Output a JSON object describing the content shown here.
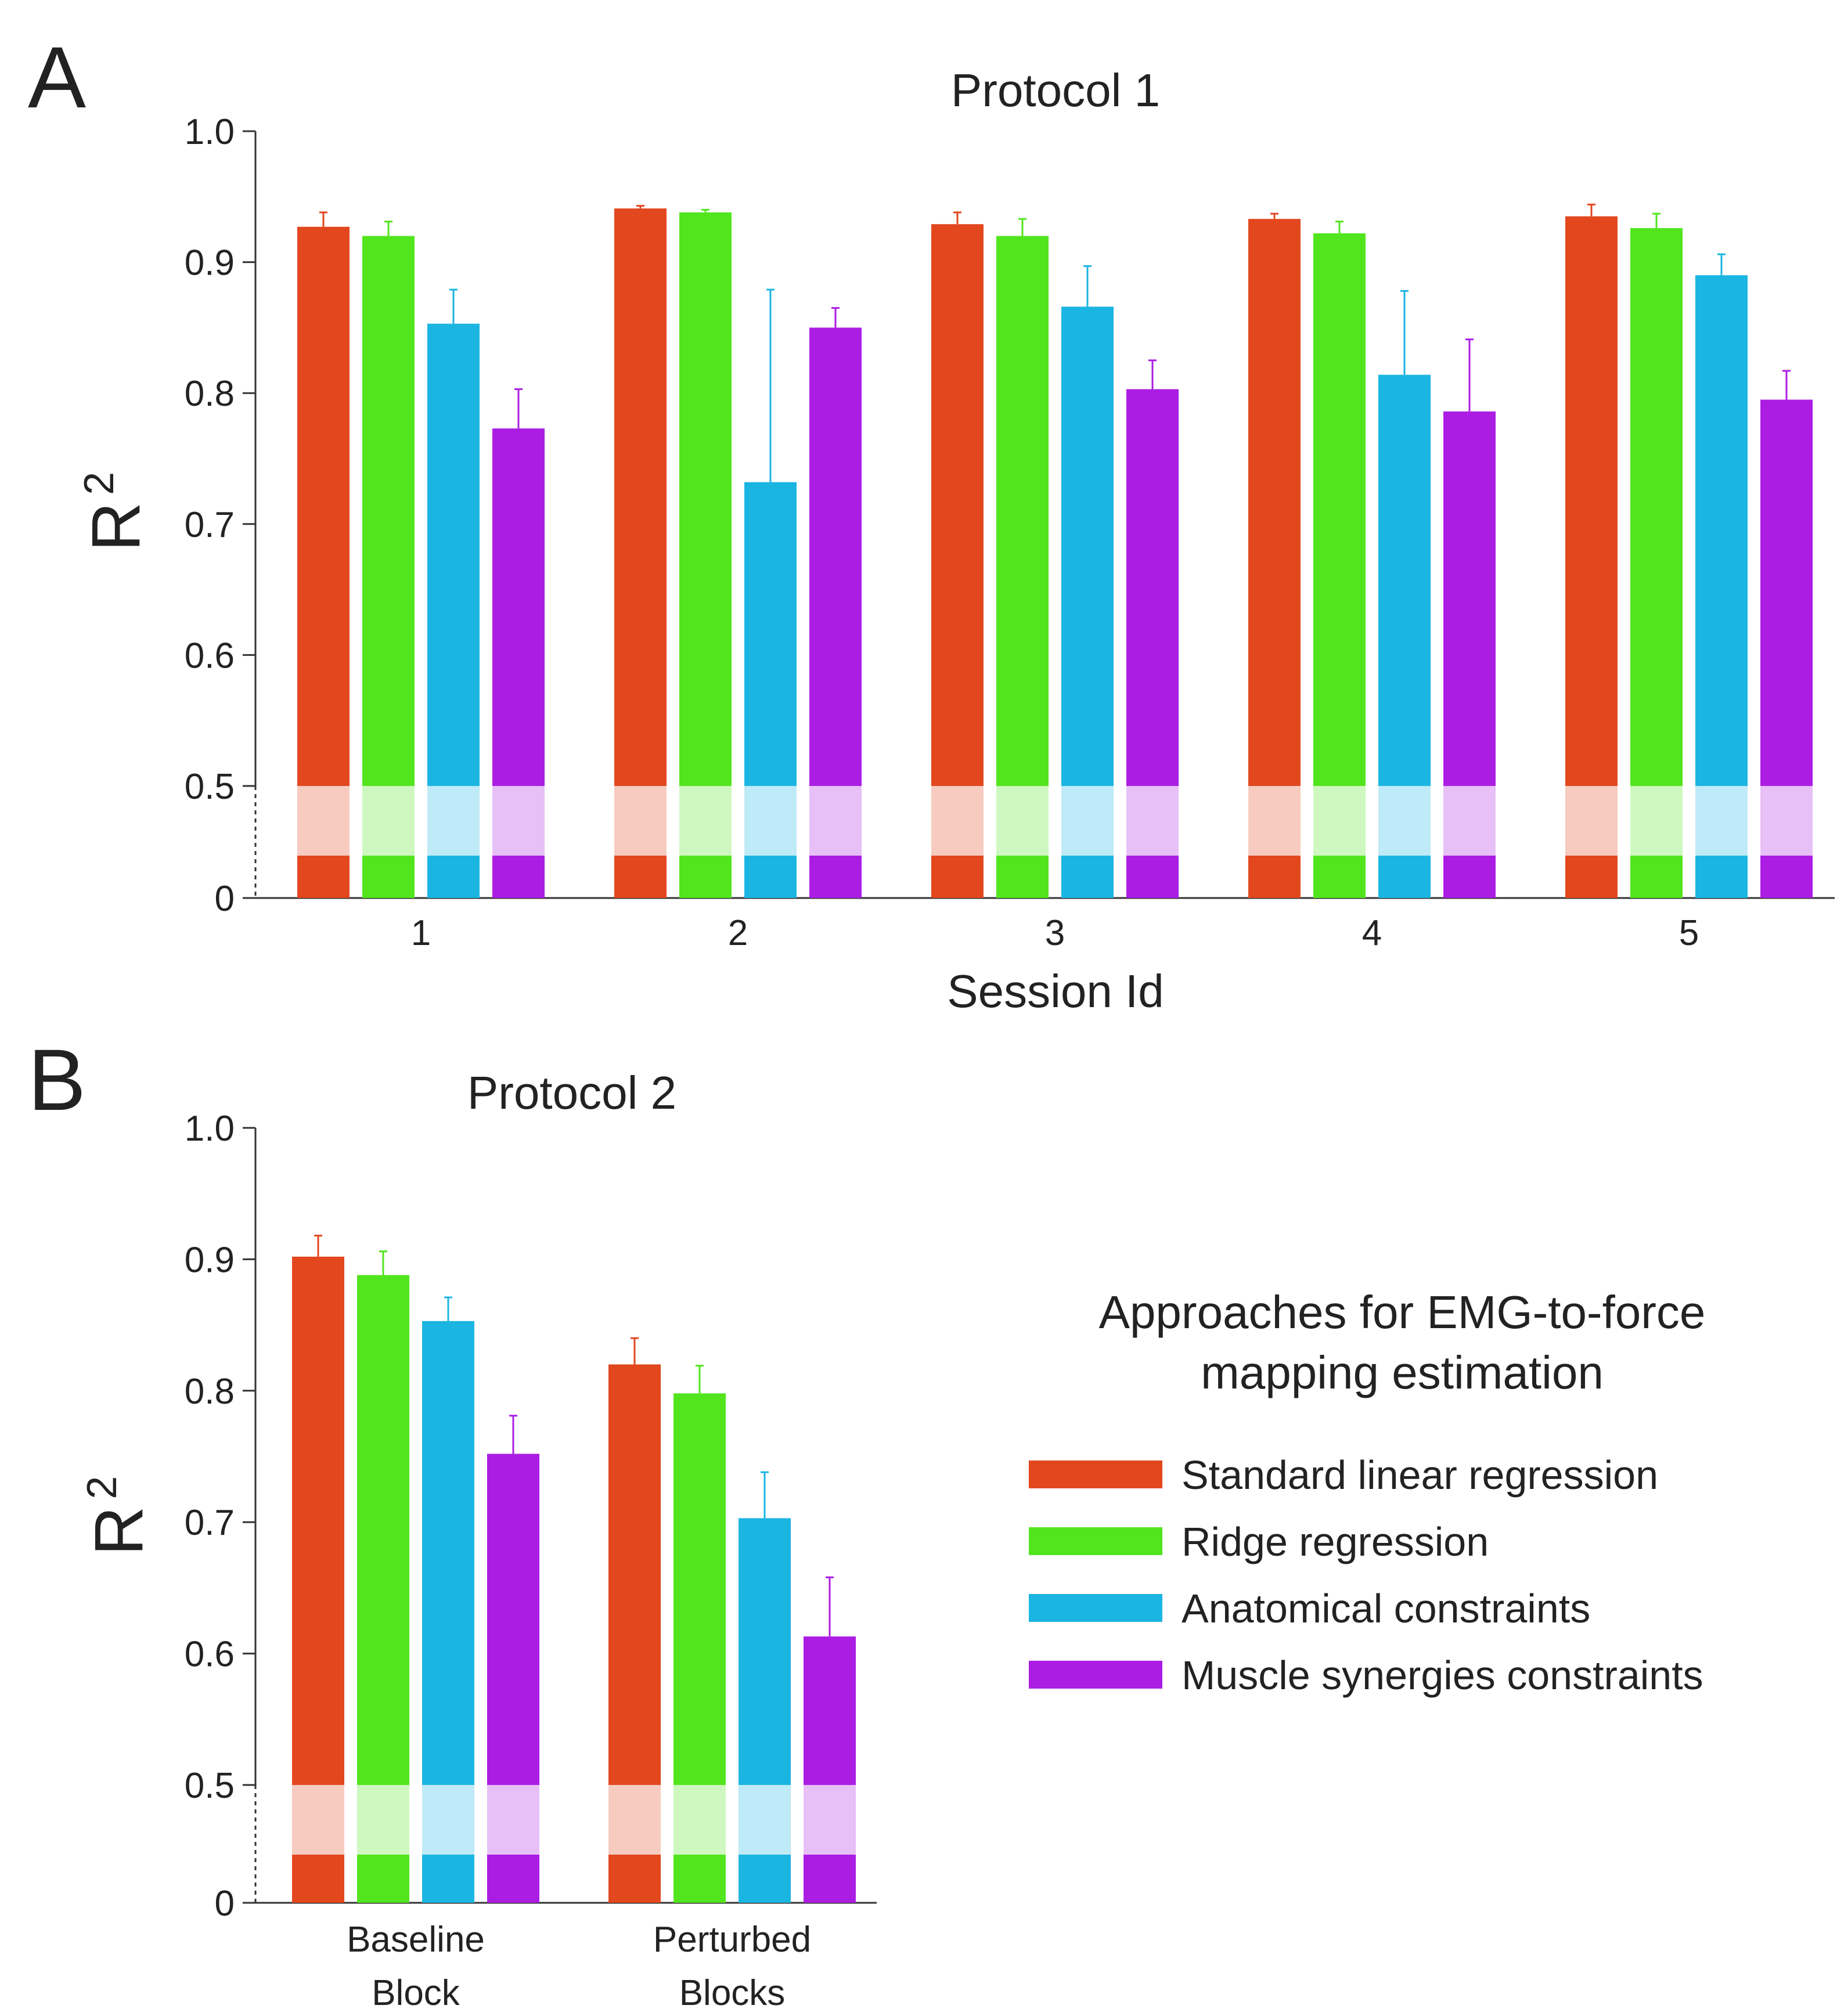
{
  "panel_letters": [
    "A",
    "B"
  ],
  "legend": {
    "title_lines": [
      "Approaches for EMG-to-force",
      "mapping estimation"
    ],
    "items": [
      {
        "label": "Standard linear regression",
        "color": "#e2471e"
      },
      {
        "label": "Ridge regression",
        "color": "#52e51e"
      },
      {
        "label": "Anatomical constraints",
        "color": "#1bb5e2"
      },
      {
        "label": "Muscle synergies constraints",
        "color": "#ab1de3"
      }
    ]
  },
  "chart_data": [
    {
      "type": "bar",
      "title": "Protocol 1",
      "xlabel": "Session Id",
      "ylabel": "R",
      "ylabel_superscript": "2",
      "categories": [
        "1",
        "2",
        "3",
        "4",
        "5"
      ],
      "yticks": [
        "1.0",
        "0.9",
        "0.8",
        "0.7",
        "0.6",
        "0.5",
        "0"
      ],
      "ylim": [
        0.5,
        1.0
      ],
      "axis_break": true,
      "series": [
        {
          "name": "Standard linear regression",
          "color": "#e2471e",
          "values": [
            0.927,
            0.941,
            0.929,
            0.933,
            0.935
          ],
          "errors": [
            0.011,
            0.002,
            0.009,
            0.004,
            0.009
          ]
        },
        {
          "name": "Ridge regression",
          "color": "#52e51e",
          "values": [
            0.92,
            0.938,
            0.92,
            0.922,
            0.926
          ],
          "errors": [
            0.011,
            0.002,
            0.013,
            0.009,
            0.011
          ]
        },
        {
          "name": "Anatomical constraints",
          "color": "#1bb5e2",
          "values": [
            0.853,
            0.732,
            0.866,
            0.814,
            0.89
          ],
          "errors": [
            0.026,
            0.147,
            0.031,
            0.064,
            0.016
          ]
        },
        {
          "name": "Muscle synergies constraints",
          "color": "#ab1de3",
          "values": [
            0.773,
            0.85,
            0.803,
            0.786,
            0.795
          ],
          "errors": [
            0.03,
            0.015,
            0.022,
            0.055,
            0.022
          ]
        }
      ]
    },
    {
      "type": "bar",
      "title": "Protocol 2",
      "xlabel": "",
      "ylabel": "R",
      "ylabel_superscript": "2",
      "categories": [
        [
          "Baseline",
          "Block"
        ],
        [
          "Perturbed",
          "Blocks"
        ]
      ],
      "yticks": [
        "1.0",
        "0.9",
        "0.8",
        "0.7",
        "0.6",
        "0.5",
        "0"
      ],
      "ylim": [
        0.5,
        1.0
      ],
      "axis_break": true,
      "series": [
        {
          "name": "Standard linear regression",
          "color": "#e2471e",
          "values": [
            0.902,
            0.82
          ],
          "errors": [
            0.016,
            0.02
          ]
        },
        {
          "name": "Ridge regression",
          "color": "#52e51e",
          "values": [
            0.888,
            0.798
          ],
          "errors": [
            0.018,
            0.021
          ]
        },
        {
          "name": "Anatomical constraints",
          "color": "#1bb5e2",
          "values": [
            0.853,
            0.703
          ],
          "errors": [
            0.018,
            0.035
          ]
        },
        {
          "name": "Muscle synergies constraints",
          "color": "#ab1de3",
          "values": [
            0.752,
            0.613
          ],
          "errors": [
            0.029,
            0.045
          ]
        }
      ]
    }
  ]
}
